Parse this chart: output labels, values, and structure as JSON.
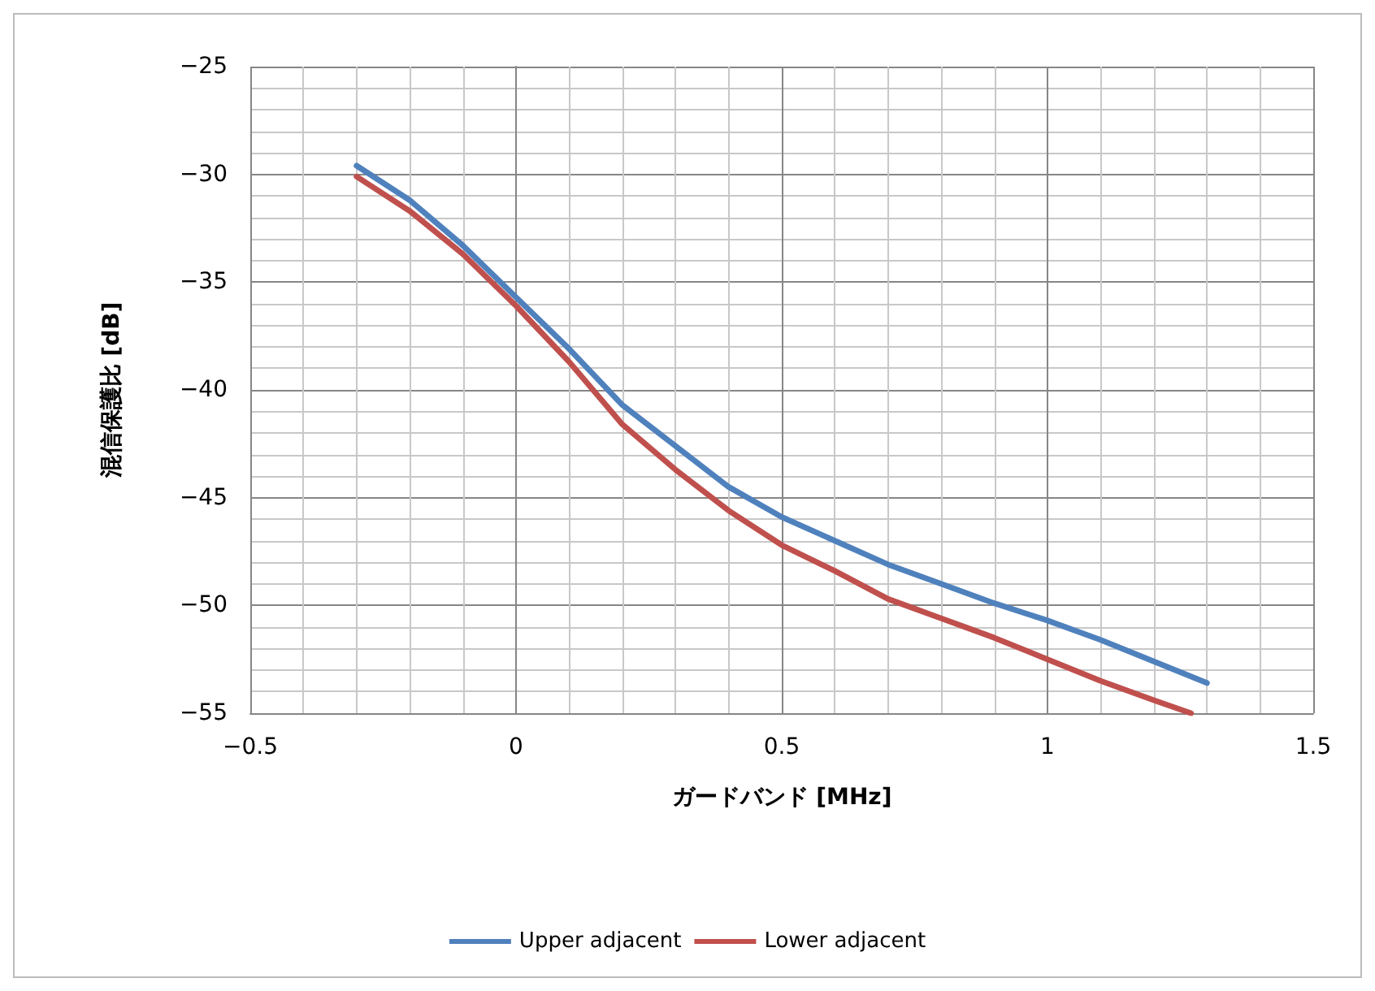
{
  "chart_data": {
    "type": "line",
    "xlabel": "ガードバンド [MHz]",
    "ylabel": "混信保護比 [dB]",
    "x": [
      -0.3,
      -0.2,
      -0.1,
      0,
      0.1,
      0.2,
      0.3,
      0.4,
      0.5,
      0.6,
      0.7,
      0.8,
      0.9,
      1.0,
      1.1,
      1.2,
      1.3
    ],
    "series": [
      {
        "name": "Upper adjacent",
        "color": "#4f81bd",
        "values": [
          -29.6,
          -31.2,
          -33.3,
          -35.7,
          -38.1,
          -40.7,
          -42.6,
          -44.5,
          -45.9,
          -47.0,
          -48.1,
          -49.0,
          -49.9,
          -50.7,
          -51.6,
          -52.6,
          -53.6
        ]
      },
      {
        "name": "Lower adjacent",
        "color": "#c0504d",
        "x": [
          -0.3,
          -0.2,
          -0.1,
          0,
          0.1,
          0.2,
          0.3,
          0.4,
          0.5,
          0.6,
          0.7,
          0.8,
          0.9,
          1.0,
          1.1,
          1.2,
          1.27
        ],
        "values": [
          -30.1,
          -31.7,
          -33.7,
          -36.1,
          -38.7,
          -41.6,
          -43.7,
          -45.6,
          -47.2,
          -48.4,
          -49.7,
          -50.6,
          -51.5,
          -52.5,
          -53.5,
          -54.4,
          -55
        ]
      }
    ],
    "xlim": [
      -0.5,
      1.5
    ],
    "xticks": [
      -0.5,
      0,
      0.5,
      1,
      1.5
    ],
    "ylim": [
      -55,
      -25
    ],
    "yticks": [
      -55,
      -50,
      -45,
      -40,
      -35,
      -30,
      -25
    ],
    "grid": true,
    "legend": "bottom",
    "marker": "none",
    "line_style": "solid"
  }
}
